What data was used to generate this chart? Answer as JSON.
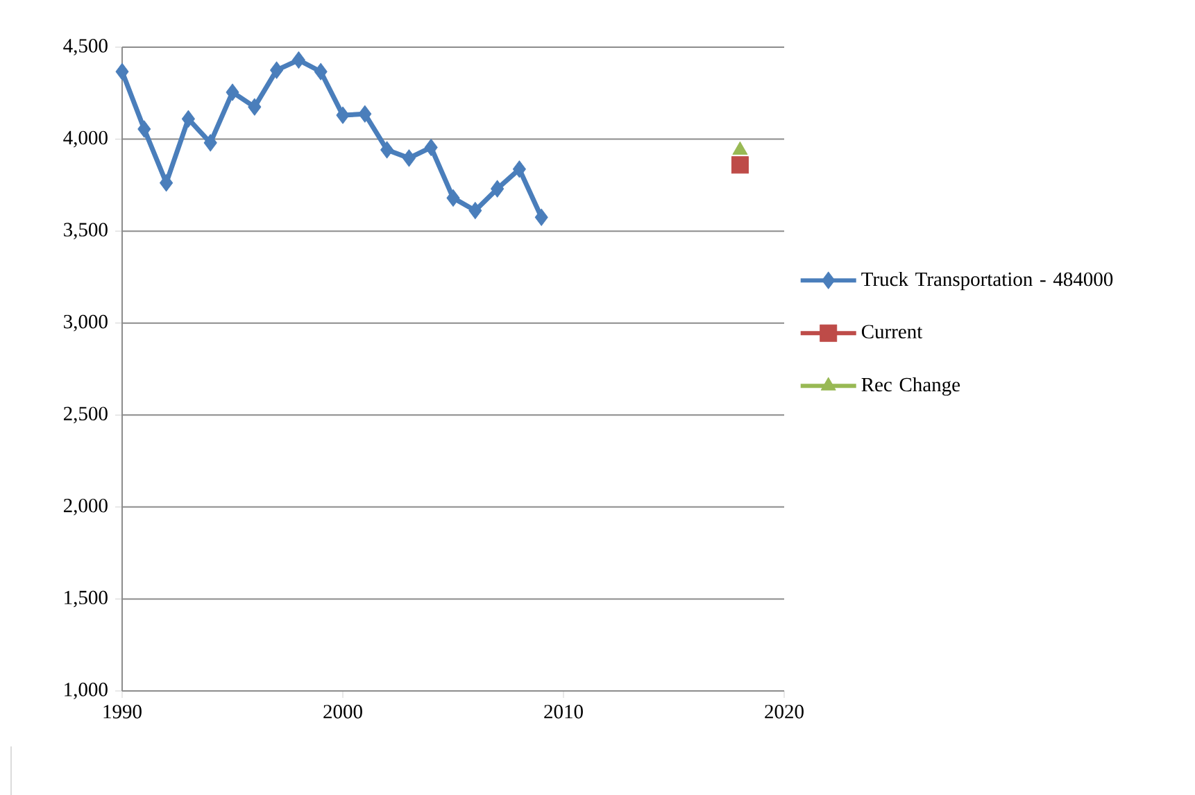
{
  "chart_data": {
    "type": "line",
    "xlim": [
      1990,
      2020
    ],
    "xticks": [
      1990,
      2000,
      2010,
      2020
    ],
    "ylim": [
      1000,
      4500
    ],
    "yticks": [
      {
        "value": 1000,
        "label": "1,000"
      },
      {
        "value": 1500,
        "label": "1,500"
      },
      {
        "value": 2000,
        "label": "2,000"
      },
      {
        "value": 2500,
        "label": "2,500"
      },
      {
        "value": 3000,
        "label": "3,000"
      },
      {
        "value": 3500,
        "label": "3,500"
      },
      {
        "value": 4000,
        "label": "4,000"
      },
      {
        "value": 4500,
        "label": "4,500"
      }
    ],
    "grid": "y",
    "legend": "right",
    "line_style": "solid",
    "series": [
      {
        "name": "Truck Transportation - 484000",
        "color": "#4a7ebb",
        "marker": "diamond",
        "x": [
          1990,
          1991,
          1992,
          1993,
          1994,
          1995,
          1996,
          1997,
          1998,
          1999,
          2000,
          2001,
          2002,
          2003,
          2004,
          2005,
          2006,
          2007,
          2008,
          2009
        ],
        "values": [
          4367,
          4055,
          3762,
          4110,
          3980,
          4255,
          4175,
          4375,
          4430,
          4367,
          4130,
          4137,
          3942,
          3897,
          3955,
          3680,
          3612,
          3730,
          3837,
          3575
        ]
      },
      {
        "name": "Current",
        "color": "#be4b48",
        "marker": "square",
        "x": [
          2018
        ],
        "values": [
          3860
        ]
      },
      {
        "name": "Rec Change",
        "color": "#98b954",
        "marker": "triangle",
        "x": [
          2018
        ],
        "values": [
          3940
        ]
      }
    ]
  }
}
